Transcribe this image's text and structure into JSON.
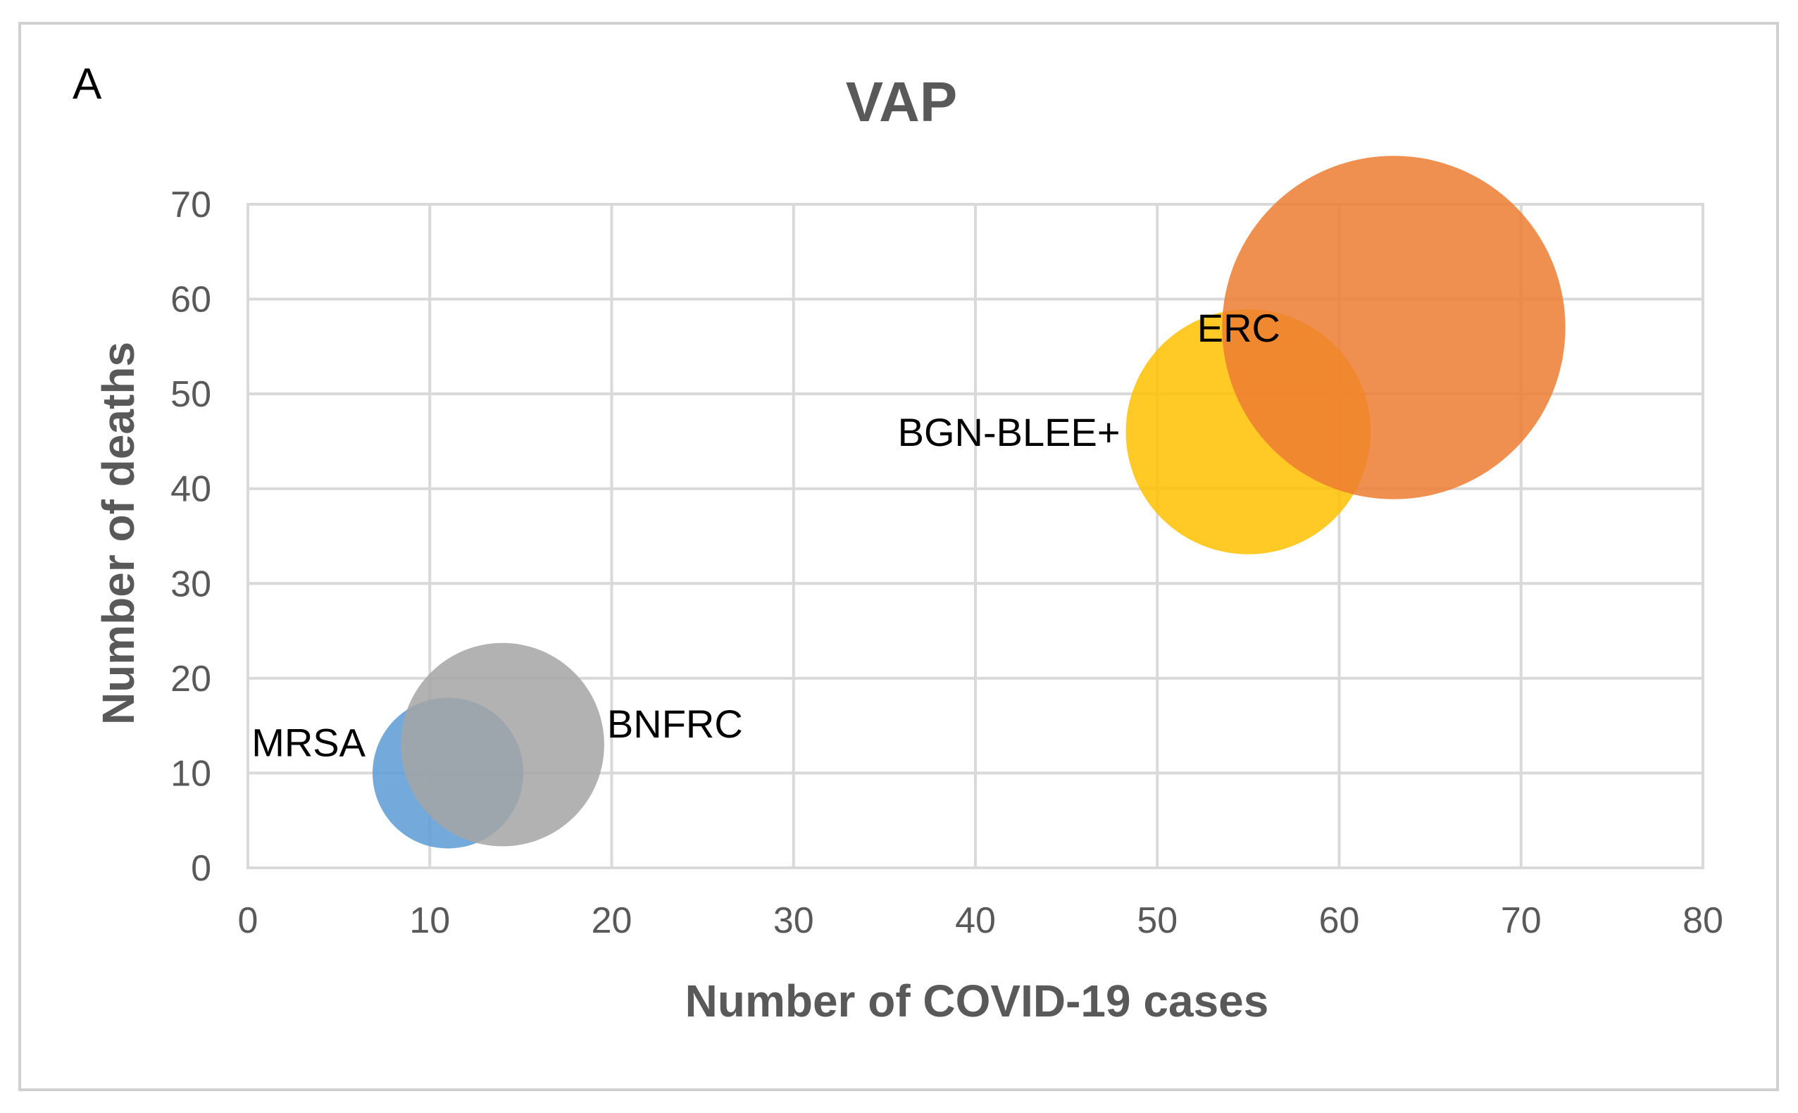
{
  "panel_label": "A",
  "chart_data": {
    "type": "bubble",
    "title": "VAP",
    "xlabel": "Number of COVID-19 cases",
    "ylabel": "Number of deaths",
    "xlim": [
      0,
      80
    ],
    "ylim": [
      0,
      70
    ],
    "xticks": [
      0,
      10,
      20,
      30,
      40,
      50,
      60,
      70,
      80
    ],
    "yticks": [
      0,
      10,
      20,
      30,
      40,
      50,
      60,
      70
    ],
    "grid": true,
    "series": [
      {
        "name": "MRSA",
        "x": 11,
        "y": 10,
        "size": 11,
        "color": "#5B9BD5",
        "label_side": "left"
      },
      {
        "name": "BNFRC",
        "x": 14,
        "y": 13,
        "size": 20,
        "color": "#A5A5A5",
        "label_side": "right"
      },
      {
        "name": "BGN-BLEE+",
        "x": 55,
        "y": 46,
        "size": 29,
        "color": "#FFC000",
        "label_side": "left"
      },
      {
        "name": "ERC",
        "x": 63,
        "y": 57,
        "size": 57,
        "color": "#ED7D31",
        "label_side": "top-left"
      }
    ]
  }
}
